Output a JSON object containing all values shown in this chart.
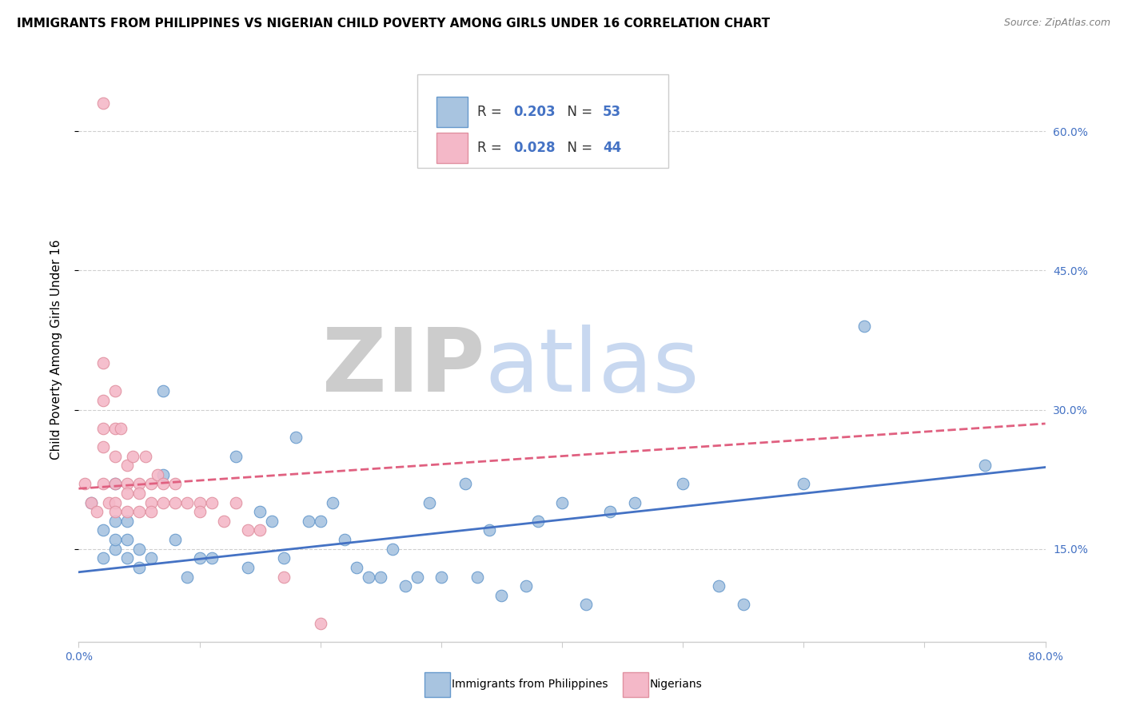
{
  "title": "IMMIGRANTS FROM PHILIPPINES VS NIGERIAN CHILD POVERTY AMONG GIRLS UNDER 16 CORRELATION CHART",
  "source": "Source: ZipAtlas.com",
  "ylabel": "Child Poverty Among Girls Under 16",
  "xlim": [
    0.0,
    0.8
  ],
  "ylim": [
    0.05,
    0.68
  ],
  "yticks": [
    0.15,
    0.3,
    0.45,
    0.6
  ],
  "ytick_labels": [
    "15.0%",
    "30.0%",
    "45.0%",
    "60.0%"
  ],
  "xticks": [
    0.0,
    0.1,
    0.2,
    0.3,
    0.4,
    0.5,
    0.6,
    0.7,
    0.8
  ],
  "xtick_labels": [
    "0.0%",
    "",
    "",
    "",
    "",
    "",
    "",
    "",
    "80.0%"
  ],
  "series": [
    {
      "name": "Immigrants from Philippines",
      "R": 0.203,
      "N": 53,
      "color": "#a8c4e0",
      "edge_color": "#6699cc",
      "line_color": "#4472c4",
      "trend_linestyle": "solid",
      "x": [
        0.01,
        0.02,
        0.02,
        0.03,
        0.03,
        0.03,
        0.03,
        0.04,
        0.04,
        0.04,
        0.05,
        0.05,
        0.06,
        0.07,
        0.07,
        0.08,
        0.09,
        0.1,
        0.11,
        0.13,
        0.14,
        0.15,
        0.16,
        0.17,
        0.18,
        0.19,
        0.2,
        0.21,
        0.22,
        0.23,
        0.24,
        0.25,
        0.26,
        0.27,
        0.28,
        0.29,
        0.3,
        0.32,
        0.33,
        0.34,
        0.35,
        0.37,
        0.38,
        0.4,
        0.42,
        0.44,
        0.46,
        0.5,
        0.53,
        0.55,
        0.6,
        0.65,
        0.75
      ],
      "y": [
        0.2,
        0.14,
        0.17,
        0.15,
        0.16,
        0.18,
        0.22,
        0.14,
        0.16,
        0.18,
        0.13,
        0.15,
        0.14,
        0.32,
        0.23,
        0.16,
        0.12,
        0.14,
        0.14,
        0.25,
        0.13,
        0.19,
        0.18,
        0.14,
        0.27,
        0.18,
        0.18,
        0.2,
        0.16,
        0.13,
        0.12,
        0.12,
        0.15,
        0.11,
        0.12,
        0.2,
        0.12,
        0.22,
        0.12,
        0.17,
        0.1,
        0.11,
        0.18,
        0.2,
        0.09,
        0.19,
        0.2,
        0.22,
        0.11,
        0.09,
        0.22,
        0.39,
        0.24
      ],
      "trend_x": [
        0.0,
        0.8
      ],
      "trend_y": [
        0.125,
        0.238
      ]
    },
    {
      "name": "Nigerians",
      "R": 0.028,
      "N": 44,
      "color": "#f4b8c8",
      "edge_color": "#e090a0",
      "line_color": "#e06080",
      "trend_linestyle": "dashed",
      "x": [
        0.005,
        0.01,
        0.015,
        0.02,
        0.02,
        0.02,
        0.02,
        0.02,
        0.02,
        0.025,
        0.03,
        0.03,
        0.03,
        0.03,
        0.03,
        0.03,
        0.035,
        0.04,
        0.04,
        0.04,
        0.04,
        0.045,
        0.05,
        0.05,
        0.05,
        0.055,
        0.06,
        0.06,
        0.06,
        0.065,
        0.07,
        0.07,
        0.08,
        0.08,
        0.09,
        0.1,
        0.1,
        0.11,
        0.12,
        0.13,
        0.14,
        0.15,
        0.17,
        0.2
      ],
      "y": [
        0.22,
        0.2,
        0.19,
        0.63,
        0.35,
        0.31,
        0.28,
        0.26,
        0.22,
        0.2,
        0.32,
        0.28,
        0.25,
        0.22,
        0.2,
        0.19,
        0.28,
        0.24,
        0.22,
        0.21,
        0.19,
        0.25,
        0.22,
        0.21,
        0.19,
        0.25,
        0.22,
        0.2,
        0.19,
        0.23,
        0.2,
        0.22,
        0.2,
        0.22,
        0.2,
        0.2,
        0.19,
        0.2,
        0.18,
        0.2,
        0.17,
        0.17,
        0.12,
        0.07
      ],
      "trend_x": [
        0.0,
        0.8
      ],
      "trend_y": [
        0.215,
        0.285
      ]
    }
  ],
  "watermark_zip": "ZIP",
  "watermark_atlas": "atlas",
  "watermark_zip_color": "#cccccc",
  "watermark_atlas_color": "#c8d8f0",
  "background_color": "#ffffff",
  "grid_color": "#d0d0d0",
  "title_fontsize": 11,
  "axis_label_fontsize": 11,
  "tick_fontsize": 10,
  "legend_fontsize": 12,
  "tick_color": "#4472c4",
  "text_color": "#333333",
  "legend_text_color": "#333333",
  "legend_num_color": "#4472c4"
}
